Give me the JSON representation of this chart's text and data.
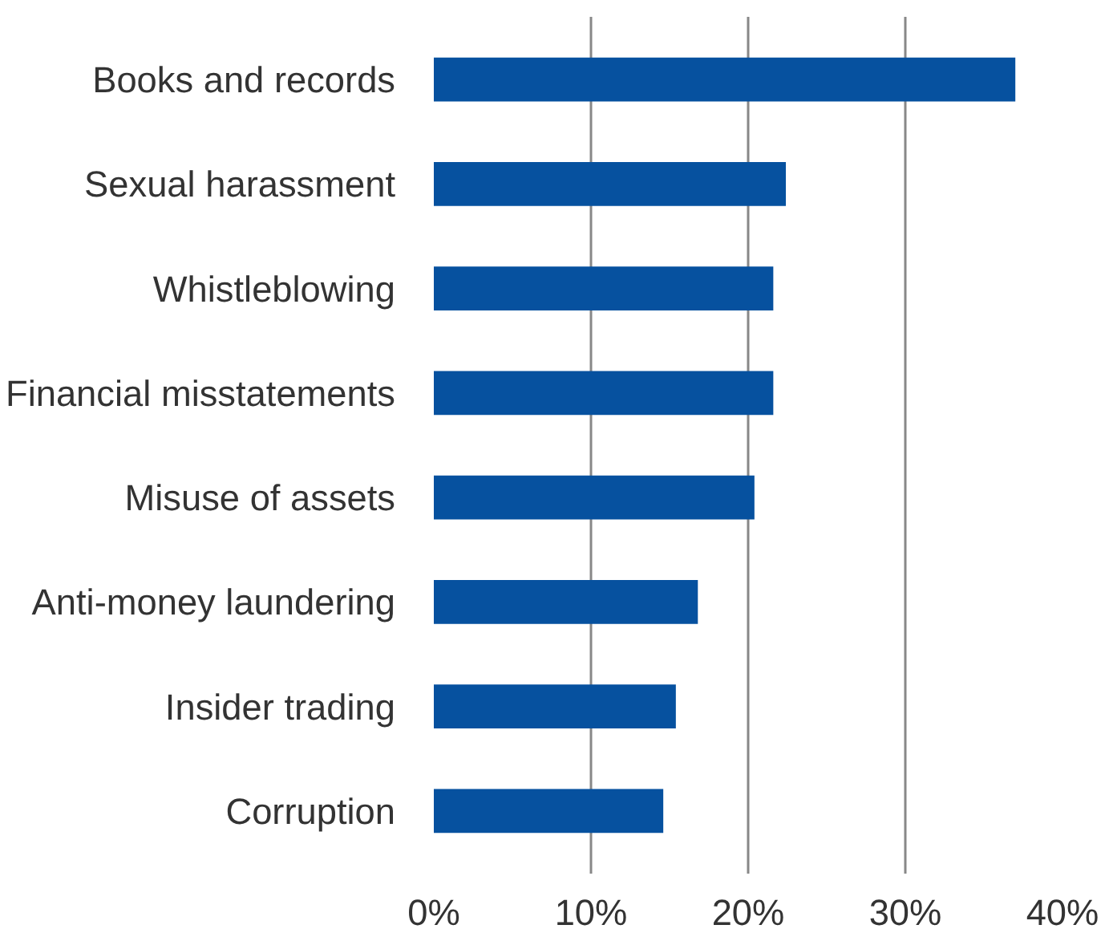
{
  "chart_data": {
    "type": "bar",
    "orientation": "horizontal",
    "categories": [
      "Books and records",
      "Sexual harassment",
      "Whistleblowing",
      "Financial misstatements",
      "Misuse of assets",
      "Anti-money laundering",
      "Insider trading",
      "Corruption"
    ],
    "values": [
      37,
      22.4,
      21.6,
      21.6,
      20.4,
      16.8,
      15.4,
      14.6
    ],
    "color": "#06519f",
    "xlim": [
      0,
      40
    ],
    "xticks": [
      {
        "value": 0,
        "label": "0%"
      },
      {
        "value": 10,
        "label": "10%"
      },
      {
        "value": 20,
        "label": "20%"
      },
      {
        "value": 30,
        "label": "30%"
      },
      {
        "value": 40,
        "label": "40%"
      }
    ],
    "grid": "x"
  }
}
